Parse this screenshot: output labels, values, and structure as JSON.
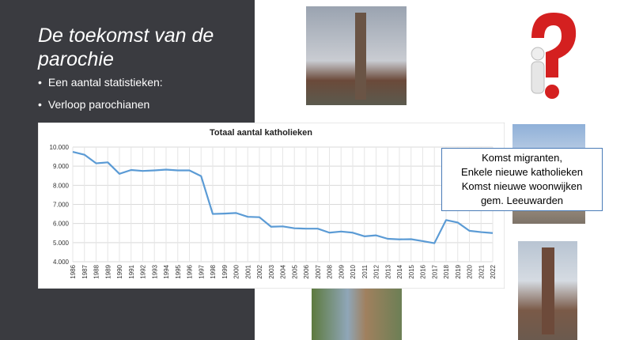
{
  "slide": {
    "title": "De toekomst van de parochie",
    "bullets": [
      "Een aantal statistieken:",
      "Verloop parochianen"
    ],
    "callout": [
      "Komst migranten,",
      "Enkele nieuwe katholieken",
      "Komst nieuwe woonwijken",
      "gem. Leeuwarden"
    ]
  },
  "chart_data": {
    "type": "line",
    "title": "Totaal aantal katholieken",
    "categories": [
      "1986",
      "1987",
      "1988",
      "1989",
      "1990",
      "1991",
      "1992",
      "1993",
      "1994",
      "1995",
      "1996",
      "1997",
      "1998",
      "1999",
      "2000",
      "2001",
      "2002",
      "2003",
      "2004",
      "2005",
      "2006",
      "2007",
      "2008",
      "2009",
      "2010",
      "2011",
      "2012",
      "2013",
      "2014",
      "2015",
      "2016",
      "2017",
      "2018",
      "2019",
      "2020",
      "2021",
      "2022"
    ],
    "values": [
      9750,
      9600,
      9150,
      9200,
      8600,
      8800,
      8750,
      8780,
      8820,
      8780,
      8780,
      8480,
      6500,
      6520,
      6550,
      6350,
      6330,
      5830,
      5850,
      5750,
      5730,
      5730,
      5520,
      5580,
      5520,
      5330,
      5380,
      5200,
      5170,
      5180,
      5080,
      4970,
      6180,
      6050,
      5620,
      5550,
      5500
    ],
    "color": "#5b9bd5",
    "ylim": [
      4000,
      10000
    ],
    "yticks": [
      {
        "value": 4000,
        "label": "4.000"
      },
      {
        "value": 5000,
        "label": "5.000"
      },
      {
        "value": 6000,
        "label": "6.000"
      },
      {
        "value": 7000,
        "label": "7.000"
      },
      {
        "value": 8000,
        "label": "8.000"
      },
      {
        "value": 9000,
        "label": "9.000"
      },
      {
        "value": 10000,
        "label": "10.000"
      }
    ],
    "grid": true
  }
}
